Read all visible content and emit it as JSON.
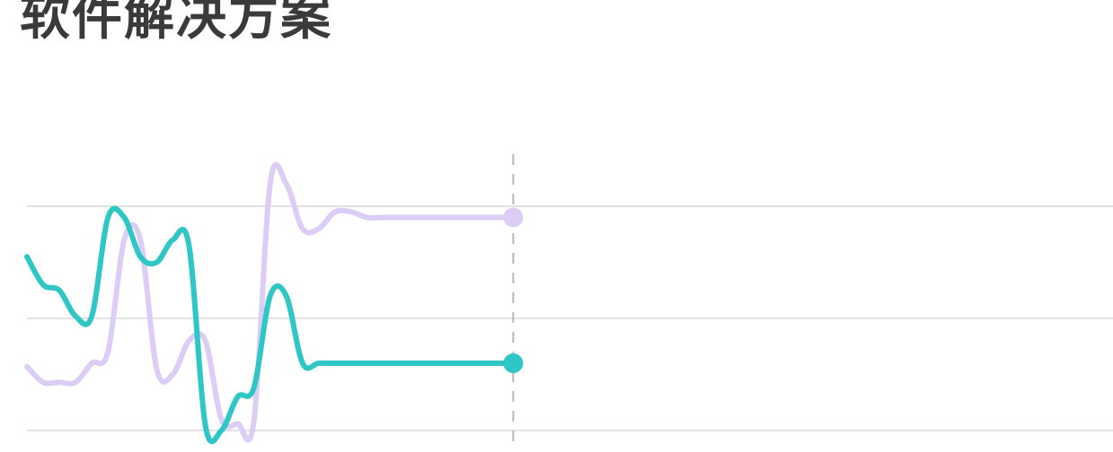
{
  "title": "软件解决方案",
  "chart_data": {
    "type": "line",
    "title": "软件解决方案",
    "xlabel": "",
    "ylabel": "",
    "x": [
      0,
      1,
      2,
      3,
      4,
      5,
      6,
      7,
      8,
      9,
      10,
      11,
      12,
      13,
      14,
      15,
      16,
      17,
      18,
      19,
      20,
      21,
      22,
      23,
      24,
      25,
      26,
      27,
      28,
      29,
      30
    ],
    "xlim": [
      0,
      67
    ],
    "ylim": [
      0,
      2
    ],
    "grid": true,
    "gridlines_y": [
      0,
      1,
      2
    ],
    "cursor_x": 30,
    "series": [
      {
        "color": "#dccdf6",
        "end_marker": true,
        "values": [
          0.57,
          0.43,
          0.43,
          0.43,
          0.6,
          0.7,
          1.7,
          1.7,
          0.55,
          0.5,
          0.8,
          0.8,
          0.1,
          0.06,
          0.08,
          2.2,
          2.2,
          1.8,
          1.8,
          1.95,
          1.95,
          1.9,
          1.9,
          1.9,
          1.9,
          1.9,
          1.9,
          1.9,
          1.9,
          1.9,
          1.9
        ]
      },
      {
        "color": "#2fc6c6",
        "end_marker": true,
        "values": [
          1.55,
          1.3,
          1.25,
          1.02,
          1.02,
          1.9,
          1.9,
          1.55,
          1.5,
          1.7,
          1.65,
          0.05,
          0.0,
          0.3,
          0.38,
          1.2,
          1.2,
          0.6,
          0.6,
          0.6,
          0.6,
          0.6,
          0.6,
          0.6,
          0.6,
          0.6,
          0.6,
          0.6,
          0.6,
          0.6,
          0.6
        ]
      }
    ]
  }
}
